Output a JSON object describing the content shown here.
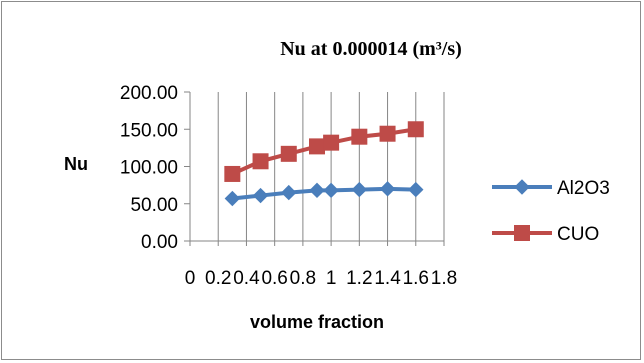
{
  "chart_data": {
    "type": "line",
    "title": "Nu at  0.000014 (m³/s)",
    "xlabel": "volume fraction",
    "ylabel": "Nu",
    "xlim": [
      0,
      1.8
    ],
    "ylim": [
      0,
      200
    ],
    "x_ticks": [
      "0",
      "0.2",
      "0.4",
      "0.6",
      "0.8",
      "1",
      "1.2",
      "1.4",
      "1.6",
      "1.8"
    ],
    "y_ticks": [
      "0.00",
      "50.00",
      "100.00",
      "150.00",
      "200.00"
    ],
    "grid": "vertical",
    "legend_position": "right",
    "series": [
      {
        "name": "Al2O3",
        "color": "#4a7ebb",
        "marker": "diamond",
        "x": [
          0.3,
          0.5,
          0.7,
          0.9,
          1.0,
          1.2,
          1.4,
          1.6
        ],
        "values": [
          57,
          61,
          65,
          68,
          68,
          69,
          70,
          69
        ]
      },
      {
        "name": "CUO",
        "color": "#be4b48",
        "marker": "square",
        "x": [
          0.3,
          0.5,
          0.7,
          0.9,
          1.0,
          1.2,
          1.4,
          1.6
        ],
        "values": [
          90,
          107,
          117,
          127,
          132,
          140,
          144,
          150
        ]
      }
    ]
  }
}
